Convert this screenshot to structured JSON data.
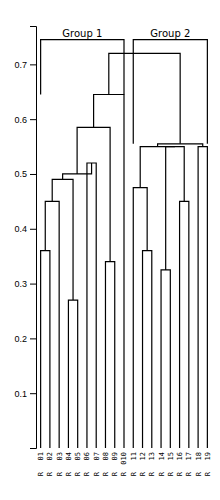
{
  "chart_data": {
    "type": "dendrogram",
    "categories": [
      "01",
      "02",
      "03",
      "04",
      "05",
      "06",
      "07",
      "08",
      "09",
      "010",
      "11",
      "12",
      "13",
      "14",
      "15",
      "16",
      "17",
      "18",
      "19"
    ],
    "sublabels": [
      "R",
      "R",
      "R",
      "R",
      "R",
      "R",
      "R",
      "R",
      "R",
      "R",
      "R",
      "R",
      "R",
      "R",
      "R",
      "R",
      "R",
      "R",
      "R"
    ],
    "merges": [
      {
        "left": 1,
        "right": 2,
        "height": 0.36
      },
      {
        "left": 20,
        "right": 3,
        "height": 0.45
      },
      {
        "left": 4,
        "right": 5,
        "height": 0.27
      },
      {
        "left": 21,
        "right": 22,
        "height": 0.49
      },
      {
        "left": 6,
        "right": 7,
        "height": 0.52
      },
      {
        "left": 23,
        "right": 24,
        "height": 0.5
      },
      {
        "left": 8,
        "right": 9,
        "height": 0.34
      },
      {
        "left": 25,
        "right": 26,
        "height": 0.585
      },
      {
        "left": 27,
        "right": 10,
        "height": 0.645
      },
      {
        "left": 12,
        "right": 13,
        "height": 0.36
      },
      {
        "left": 11,
        "right": 29,
        "height": 0.475
      },
      {
        "left": 14,
        "right": 15,
        "height": 0.325
      },
      {
        "left": 16,
        "right": 17,
        "height": 0.45
      },
      {
        "left": 31,
        "right": 32,
        "height": 0.55
      },
      {
        "left": 30,
        "right": 33,
        "height": 0.55
      },
      {
        "left": 18,
        "right": 19,
        "height": 0.55
      },
      {
        "left": 34,
        "right": 35,
        "height": 0.555
      },
      {
        "left": 28,
        "right": 36,
        "height": 0.72
      }
    ],
    "groups": [
      {
        "label": "Group 1",
        "first_leaf": 1,
        "last_leaf": 10,
        "root": 28
      },
      {
        "label": "Group 2",
        "first_leaf": 11,
        "last_leaf": 19,
        "root": 36
      }
    ],
    "bracket_height": 0.745,
    "color": "#000000",
    "ylim": [
      0,
      0.77
    ],
    "yticks": [
      0.1,
      0.2,
      0.3,
      0.4,
      0.5,
      0.6,
      0.7
    ]
  }
}
